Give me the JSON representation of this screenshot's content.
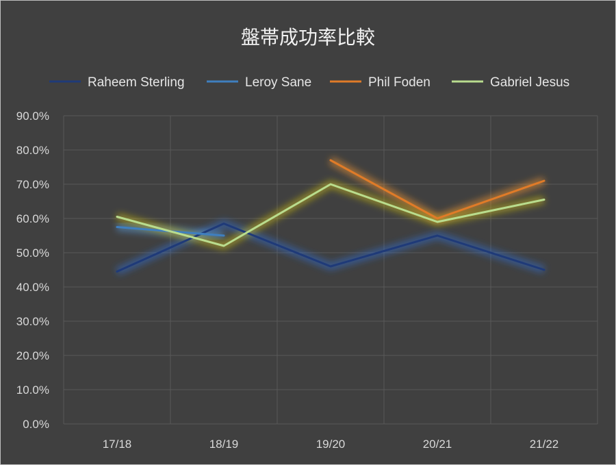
{
  "chart_data": {
    "type": "line",
    "title": "盤帯成功率比較",
    "categories": [
      "17/18",
      "18/19",
      "19/20",
      "20/21",
      "21/22"
    ],
    "ylim": [
      0,
      90
    ],
    "yticks": [
      "0.0%",
      "10.0%",
      "20.0%",
      "30.0%",
      "40.0%",
      "50.0%",
      "60.0%",
      "70.0%",
      "80.0%",
      "90.0%"
    ],
    "grid": true,
    "legend_position": "top",
    "series": [
      {
        "name": "Raheem Sterling",
        "color": "#1f3a78",
        "glow": "#2e6fd6",
        "values": [
          44.5,
          58.5,
          46.0,
          55.0,
          45.0
        ]
      },
      {
        "name": "Leroy Sane",
        "color": "#3f7fbf",
        "glow": "#5aa0e6",
        "values": [
          57.5,
          55.0,
          null,
          null,
          null
        ]
      },
      {
        "name": "Phil Foden",
        "color": "#e07b28",
        "glow": "#ff9a30",
        "values": [
          null,
          null,
          77.0,
          60.0,
          71.0
        ]
      },
      {
        "name": "Gabriel Jesus",
        "color": "#b9dc8e",
        "glow": "#d4c21a",
        "values": [
          60.5,
          52.0,
          70.0,
          59.0,
          65.5
        ]
      }
    ]
  }
}
